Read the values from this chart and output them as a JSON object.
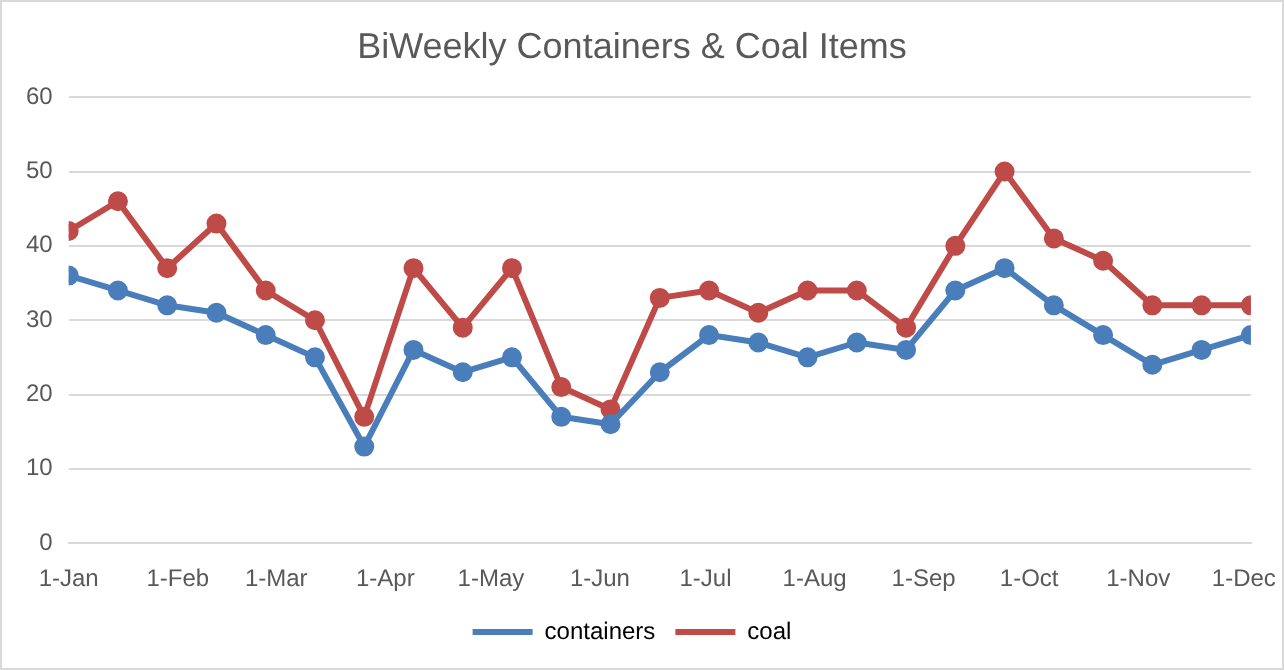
{
  "chart_data": {
    "type": "line",
    "title": "BiWeekly Containers & Coal Items",
    "x": [
      "--01-01",
      "--01-15",
      "--01-29",
      "--02-12",
      "--02-26",
      "--03-12",
      "--03-26",
      "--04-09",
      "--04-23",
      "--05-07",
      "--05-21",
      "--06-04",
      "--06-18",
      "--07-02",
      "--07-16",
      "--07-30",
      "--08-13",
      "--08-27",
      "--09-10",
      "--09-24",
      "--10-08",
      "--10-22",
      "--11-05",
      "--11-19",
      "--12-03"
    ],
    "series": [
      {
        "name": "containers",
        "color": "#4a7ebb",
        "values": [
          36,
          34,
          32,
          31,
          28,
          25,
          13,
          26,
          23,
          25,
          17,
          16,
          23,
          28,
          27,
          25,
          27,
          26,
          34,
          37,
          32,
          28,
          24,
          26,
          28
        ]
      },
      {
        "name": "coal",
        "color": "#be4b48",
        "values": [
          42,
          46,
          37,
          43,
          34,
          30,
          17,
          37,
          29,
          37,
          21,
          18,
          33,
          34,
          31,
          34,
          34,
          29,
          40,
          50,
          41,
          38,
          32,
          32,
          32
        ]
      }
    ],
    "xlim": [
      "--01-01",
      "--12-03"
    ],
    "xticks": [
      {
        "value": "--01-01",
        "label": "1-Jan"
      },
      {
        "value": "--02-01",
        "label": "1-Feb"
      },
      {
        "value": "--03-01",
        "label": "1-Mar"
      },
      {
        "value": "--04-01",
        "label": "1-Apr"
      },
      {
        "value": "--05-01",
        "label": "1-May"
      },
      {
        "value": "--06-01",
        "label": "1-Jun"
      },
      {
        "value": "--07-01",
        "label": "1-Jul"
      },
      {
        "value": "--08-01",
        "label": "1-Aug"
      },
      {
        "value": "--09-01",
        "label": "1-Sep"
      },
      {
        "value": "--10-01",
        "label": "1-Oct"
      },
      {
        "value": "--11-01",
        "label": "1-Nov"
      },
      {
        "value": "--12-01",
        "label": "1-Dec"
      }
    ],
    "ylim": [
      0,
      60
    ],
    "yticks": [
      0,
      10,
      20,
      30,
      40,
      50,
      60
    ],
    "grid": "y",
    "legend": "bottom",
    "marker": "circle",
    "line_style": "solid"
  }
}
